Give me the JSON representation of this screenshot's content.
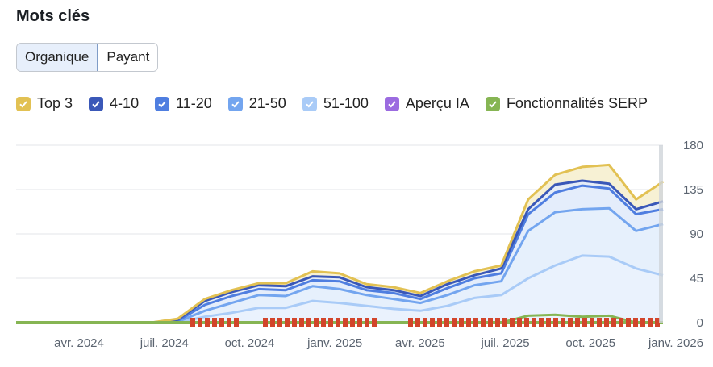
{
  "header": {
    "title": "Mots clés"
  },
  "toggle": {
    "options": [
      "Organique",
      "Payant"
    ],
    "selected": "Organique"
  },
  "legend": [
    {
      "label": "Top 3",
      "color": "#e2c153"
    },
    {
      "label": "4-10",
      "color": "#3a58b8"
    },
    {
      "label": "11-20",
      "color": "#4f7ee0"
    },
    {
      "label": "21-50",
      "color": "#73a5ef"
    },
    {
      "label": "51-100",
      "color": "#a9cbf7"
    },
    {
      "label": "Aperçu IA",
      "color": "#9b6be0"
    },
    {
      "label": "Fonctionnalités SERP",
      "color": "#86b553"
    }
  ],
  "chart_data": {
    "type": "area",
    "title": "",
    "x_ticks": [
      "avr. 2024",
      "juil. 2024",
      "oct. 2024",
      "janv. 2025",
      "avr. 2025",
      "juil. 2025",
      "oct. 2025",
      "janv. 2026"
    ],
    "y_ticks": [
      0,
      45,
      90,
      135,
      180
    ],
    "ylim": [
      0,
      180
    ],
    "y_axis_side": "right",
    "grid": true,
    "x": [
      "2024-01",
      "2024-02",
      "2024-03",
      "2024-04",
      "2024-05",
      "2024-06",
      "2024-07",
      "2024-08",
      "2024-09",
      "2024-10",
      "2024-11",
      "2024-12",
      "2025-01",
      "2025-02",
      "2025-03",
      "2025-04",
      "2025-05",
      "2025-06",
      "2025-07",
      "2025-08",
      "2025-09",
      "2025-10",
      "2025-11",
      "2025-12",
      "2026-01"
    ],
    "series": [
      {
        "name": "Top 3",
        "values": [
          0,
          0,
          0,
          0,
          0,
          0,
          4,
          24,
          33,
          40,
          40,
          52,
          50,
          39,
          36,
          30,
          42,
          52,
          58,
          125,
          150,
          158,
          160,
          125,
          143
        ]
      },
      {
        "name": "4-10",
        "values": [
          0,
          0,
          0,
          0,
          0,
          0,
          3,
          22,
          31,
          38,
          37,
          47,
          46,
          36,
          33,
          27,
          39,
          48,
          55,
          115,
          140,
          144,
          141,
          115,
          123
        ]
      },
      {
        "name": "11-20",
        "values": [
          0,
          0,
          0,
          0,
          0,
          0,
          2,
          18,
          27,
          34,
          33,
          43,
          42,
          33,
          30,
          24,
          35,
          45,
          50,
          110,
          132,
          139,
          136,
          110,
          115
        ]
      },
      {
        "name": "21-50",
        "values": [
          0,
          0,
          0,
          0,
          0,
          0,
          1,
          12,
          20,
          28,
          27,
          37,
          34,
          28,
          24,
          20,
          28,
          38,
          42,
          93,
          112,
          115,
          116,
          93,
          100
        ]
      },
      {
        "name": "51-100",
        "values": [
          0,
          0,
          0,
          0,
          0,
          0,
          0,
          6,
          10,
          15,
          15,
          22,
          20,
          17,
          14,
          12,
          17,
          25,
          28,
          45,
          58,
          68,
          67,
          55,
          48
        ]
      },
      {
        "name": "Fonctionnalités SERP",
        "values": [
          0,
          0,
          0,
          0,
          0,
          0,
          0,
          0,
          0,
          0,
          0,
          0,
          0,
          0,
          0,
          0,
          0,
          0,
          0,
          7,
          8,
          6,
          7,
          0,
          0
        ]
      }
    ]
  }
}
